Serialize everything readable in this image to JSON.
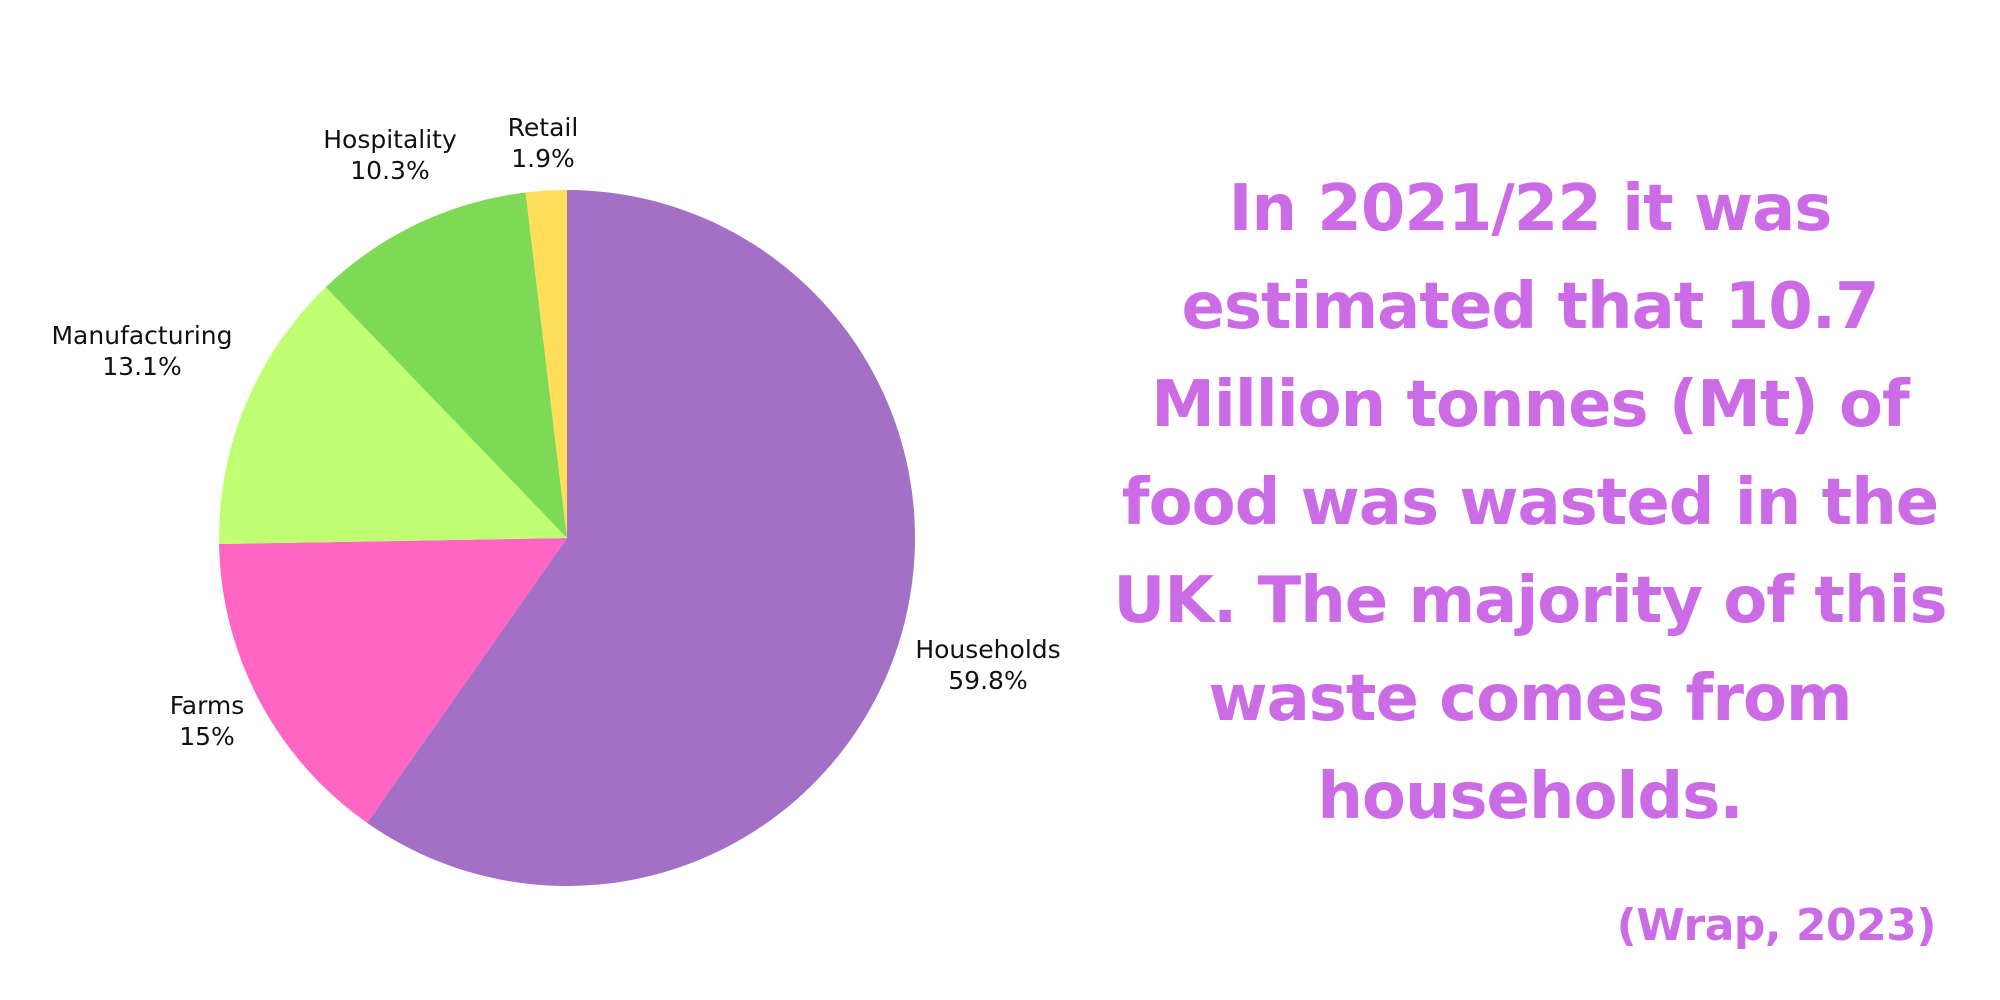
{
  "chart_data": {
    "type": "pie",
    "slices": [
      {
        "label": "Households",
        "value": 59.8,
        "display": "59.8%",
        "color": "#a370c6"
      },
      {
        "label": "Farms",
        "value": 15,
        "display": "15%",
        "color": "#ff66c4"
      },
      {
        "label": "Manufacturing",
        "value": 13.1,
        "display": "13.1%",
        "color": "#c1ff72"
      },
      {
        "label": "Hospitality",
        "value": 10.3,
        "display": "10.3%",
        "color": "#7ed957"
      },
      {
        "label": "Retail",
        "value": 1.9,
        "display": "1.9%",
        "color": "#ffde59"
      }
    ],
    "start_angle": "12 o'clock",
    "direction": "clockwise",
    "legend": "none"
  },
  "headline": {
    "text": "In 2021/22 it was estimated that 10.7 Million tonnes (Mt) of food was wasted in the UK. The majority of this waste comes from households.",
    "color": "#cb6ce6"
  },
  "citation": {
    "text": "(Wrap, 2023)",
    "color": "#cb6ce6"
  }
}
